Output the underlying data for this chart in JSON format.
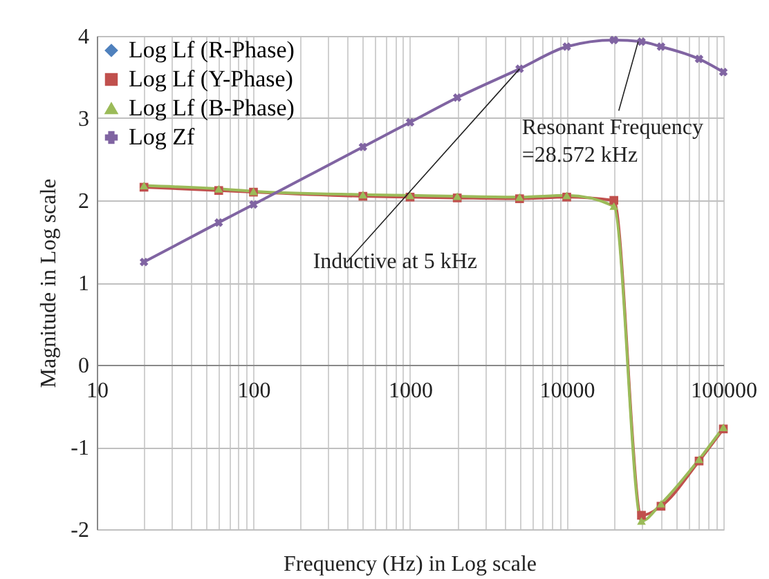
{
  "chart_data": {
    "type": "line",
    "xlabel": "Frequency (Hz) in Log scale",
    "ylabel": "Magnitude in Log  scale",
    "x": [
      20,
      60,
      100,
      500,
      1000,
      2000,
      5000,
      10000,
      20000,
      30000,
      40000,
      70000,
      100000
    ],
    "series": [
      {
        "name": "Log Lf (R-Phase)",
        "color": "#4f81bd",
        "marker": "diamond",
        "values": [
          null,
          null,
          null,
          null,
          null,
          null,
          null,
          null,
          null,
          null,
          null,
          null,
          null
        ]
      },
      {
        "name": "Log Lf (Y-Phase)",
        "color": "#c0504d",
        "marker": "square",
        "values": [
          2.16,
          2.12,
          2.1,
          2.05,
          2.04,
          2.03,
          2.02,
          2.04,
          2.0,
          -1.83,
          -1.72,
          -1.17,
          -0.78
        ]
      },
      {
        "name": "Log Lf (B-Phase)",
        "color": "#9bbb59",
        "marker": "triangle",
        "values": [
          2.18,
          2.14,
          2.11,
          2.07,
          2.06,
          2.05,
          2.04,
          2.06,
          1.93,
          -1.9,
          -1.69,
          -1.15,
          -0.76
        ]
      },
      {
        "name": "Log Zf",
        "color": "#8064a2",
        "marker": "cross",
        "values": [
          1.25,
          1.73,
          1.95,
          2.65,
          2.95,
          3.25,
          3.6,
          3.87,
          3.95,
          3.93,
          3.87,
          3.72,
          3.56
        ]
      }
    ],
    "log": "x",
    "xlim": [
      10,
      100000
    ],
    "ylim": [
      -2,
      4
    ],
    "xticks": [
      10,
      {
        "value": 20,
        "label": null
      },
      {
        "value": 30,
        "label": null
      },
      {
        "value": 40,
        "label": null
      },
      {
        "value": 50,
        "label": null
      },
      {
        "value": 60,
        "label": null
      },
      {
        "value": 70,
        "label": null
      },
      {
        "value": 80,
        "label": null
      },
      {
        "value": 90,
        "label": null
      },
      100,
      {
        "value": 200,
        "label": null
      },
      {
        "value": 300,
        "label": null
      },
      {
        "value": 400,
        "label": null
      },
      {
        "value": 500,
        "label": null
      },
      {
        "value": 600,
        "label": null
      },
      {
        "value": 700,
        "label": null
      },
      {
        "value": 800,
        "label": null
      },
      {
        "value": 900,
        "label": null
      },
      1000,
      {
        "value": 2000,
        "label": null
      },
      {
        "value": 3000,
        "label": null
      },
      {
        "value": 4000,
        "label": null
      },
      {
        "value": 5000,
        "label": null
      },
      {
        "value": 6000,
        "label": null
      },
      {
        "value": 7000,
        "label": null
      },
      {
        "value": 8000,
        "label": null
      },
      {
        "value": 9000,
        "label": null
      },
      10000,
      {
        "value": 20000,
        "label": null
      },
      {
        "value": 30000,
        "label": null
      },
      {
        "value": 40000,
        "label": null
      },
      {
        "value": 50000,
        "label": null
      },
      {
        "value": 60000,
        "label": null
      },
      {
        "value": 70000,
        "label": null
      },
      {
        "value": 80000,
        "label": null
      },
      {
        "value": 90000,
        "label": null
      },
      100000
    ],
    "yticks": [
      -2,
      -1,
      0,
      1,
      2,
      3,
      4
    ],
    "grid": true,
    "legend": "top left",
    "annotations": [
      {
        "text": "Inductive at 5 kHz",
        "x": 5000,
        "y": 3.6
      },
      {
        "text": "Resonant Frequency\n=28.572 kHz",
        "x": 28572,
        "y": 3.93
      }
    ]
  }
}
